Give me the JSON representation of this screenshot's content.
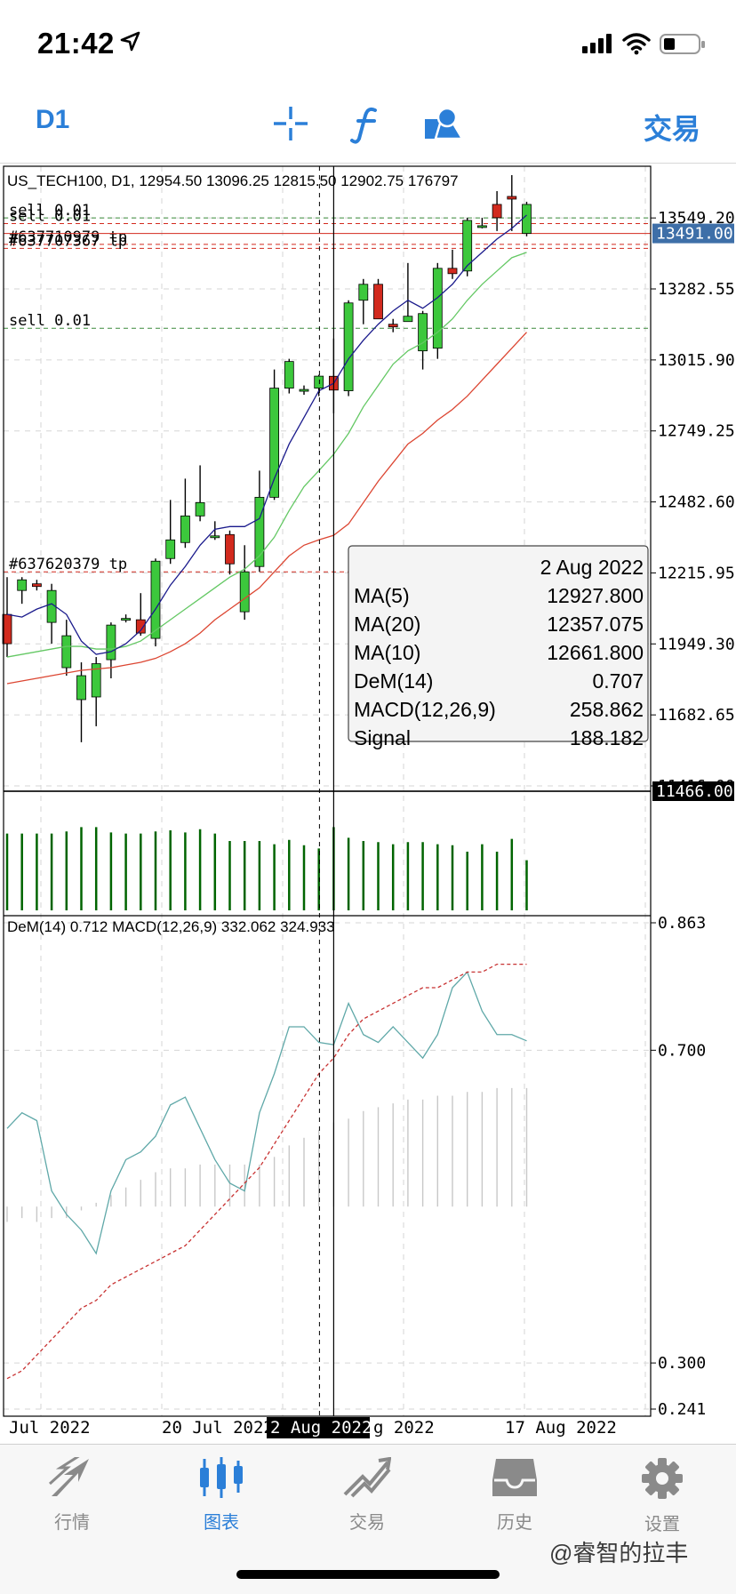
{
  "status": {
    "time": "21:42"
  },
  "toolbar": {
    "timeframe": "D1",
    "trade_label": "交易"
  },
  "chart": {
    "header": "US_TECH100, D1, 12954.50 13096.25 12815.50 12902.75 176797",
    "order_labels": [
      "sell 0.01",
      "sell 0.01",
      "#637710979 tp",
      "#637707367 tp",
      "sell 0.01",
      "#637620379 tp"
    ],
    "price_axis": [
      "13549.20",
      "13282.55",
      "13015.90",
      "12749.25",
      "12482.60",
      "12215.95",
      "11949.30",
      "11682.65",
      "11416.00"
    ],
    "current_price": "13491.00",
    "crosshair_price": "11466.00",
    "indicator_header": "DeM(14) 0.712 MACD(12,26,9) 332.062 324.933",
    "indicator_axis": [
      "0.863",
      "0.700",
      "0.300",
      "0.241"
    ],
    "date_axis": [
      "Jul 2022",
      "20 Jul 2022",
      "g 2022",
      "17 Aug 2022"
    ],
    "crosshair_date": "2 Aug 2022",
    "colors": {
      "bull": "#3cc83c",
      "bear": "#d22a1e",
      "ma5": "#1a1a8c",
      "ma10": "#64c864",
      "ma20": "#dc4632",
      "dem": "#5fa8a8",
      "signal": "#c83232",
      "volume": "#006400",
      "current_price_bg": "#3e6fa8"
    }
  },
  "chart_data": {
    "type": "candlestick",
    "title": "US_TECH100, D1",
    "candles": [
      {
        "o": 12060,
        "h": 12200,
        "l": 11900,
        "c": 11950
      },
      {
        "o": 12150,
        "h": 12200,
        "l": 12100,
        "c": 12190
      },
      {
        "o": 12175,
        "h": 12190,
        "l": 12150,
        "c": 12165
      },
      {
        "o": 12030,
        "h": 12175,
        "l": 11950,
        "c": 12150
      },
      {
        "o": 11860,
        "h": 12040,
        "l": 11830,
        "c": 11980
      },
      {
        "o": 11740,
        "h": 11880,
        "l": 11580,
        "c": 11830
      },
      {
        "o": 11750,
        "h": 11900,
        "l": 11640,
        "c": 11875
      },
      {
        "o": 11890,
        "h": 12030,
        "l": 11820,
        "c": 12020
      },
      {
        "o": 12040,
        "h": 12060,
        "l": 12030,
        "c": 12045
      },
      {
        "o": 12040,
        "h": 12140,
        "l": 11980,
        "c": 11990
      },
      {
        "o": 11970,
        "h": 12270,
        "l": 11940,
        "c": 12260
      },
      {
        "o": 12270,
        "h": 12490,
        "l": 12250,
        "c": 12340
      },
      {
        "o": 12330,
        "h": 12570,
        "l": 12310,
        "c": 12430
      },
      {
        "o": 12430,
        "h": 12620,
        "l": 12410,
        "c": 12480
      },
      {
        "o": 12350,
        "h": 12410,
        "l": 12340,
        "c": 12355
      },
      {
        "o": 12360,
        "h": 12375,
        "l": 12210,
        "c": 12250
      },
      {
        "o": 12070,
        "h": 12320,
        "l": 12040,
        "c": 12220
      },
      {
        "o": 12240,
        "h": 12600,
        "l": 12220,
        "c": 12500
      },
      {
        "o": 12500,
        "h": 12980,
        "l": 12490,
        "c": 12910
      },
      {
        "o": 12910,
        "h": 13020,
        "l": 12890,
        "c": 13010
      },
      {
        "o": 12900,
        "h": 12920,
        "l": 12885,
        "c": 12905
      },
      {
        "o": 12910,
        "h": 12960,
        "l": 12880,
        "c": 12955
      },
      {
        "o": 12954.5,
        "h": 13096.25,
        "l": 12815.5,
        "c": 12902.75
      },
      {
        "o": 12900,
        "h": 13240,
        "l": 12880,
        "c": 13230
      },
      {
        "o": 13240,
        "h": 13320,
        "l": 13150,
        "c": 13300
      },
      {
        "o": 13300,
        "h": 13320,
        "l": 13170,
        "c": 13170
      },
      {
        "o": 13150,
        "h": 13170,
        "l": 13120,
        "c": 13140
      },
      {
        "o": 13160,
        "h": 13380,
        "l": 13160,
        "c": 13180
      },
      {
        "o": 13050,
        "h": 13200,
        "l": 12980,
        "c": 13190
      },
      {
        "o": 13060,
        "h": 13380,
        "l": 13020,
        "c": 13360
      },
      {
        "o": 13360,
        "h": 13430,
        "l": 13320,
        "c": 13340
      },
      {
        "o": 13350,
        "h": 13550,
        "l": 13330,
        "c": 13540
      },
      {
        "o": 13520,
        "h": 13550,
        "l": 13510,
        "c": 13520
      },
      {
        "o": 13600,
        "h": 13650,
        "l": 13500,
        "c": 13550
      },
      {
        "o": 13630,
        "h": 13710,
        "l": 13500,
        "c": 13620
      },
      {
        "o": 13491,
        "h": 13610,
        "l": 13480,
        "c": 13600
      }
    ],
    "ma5": [
      12060,
      12050,
      12080,
      12100,
      12060,
      11960,
      11910,
      11920,
      11950,
      12000,
      12080,
      12170,
      12240,
      12320,
      12380,
      12390,
      12390,
      12420,
      12570,
      12700,
      12800,
      12900,
      12927.8,
      13020,
      13090,
      13150,
      13200,
      13240,
      13210,
      13250,
      13300,
      13370,
      13420,
      13470,
      13510,
      13560
    ],
    "ma10": [
      11900,
      11910,
      11920,
      11930,
      11940,
      11940,
      11930,
      11930,
      11940,
      11960,
      12000,
      12040,
      12080,
      12120,
      12160,
      12200,
      12230,
      12280,
      12350,
      12450,
      12540,
      12600,
      12661.8,
      12740,
      12840,
      12920,
      13000,
      13050,
      13080,
      13120,
      13170,
      13240,
      13300,
      13350,
      13400,
      13420
    ],
    "ma20": [
      11800,
      11810,
      11820,
      11830,
      11840,
      11850,
      11855,
      11860,
      11870,
      11880,
      11895,
      11920,
      11950,
      11990,
      12040,
      12080,
      12120,
      12160,
      12220,
      12280,
      12320,
      12340,
      12357.075,
      12400,
      12480,
      12560,
      12630,
      12700,
      12740,
      12790,
      12830,
      12880,
      12940,
      13000,
      13060,
      13120
    ],
    "volume": [
      0.72,
      0.72,
      0.72,
      0.72,
      0.74,
      0.78,
      0.78,
      0.73,
      0.72,
      0.72,
      0.74,
      0.75,
      0.73,
      0.76,
      0.72,
      0.65,
      0.65,
      0.65,
      0.62,
      0.66,
      0.61,
      0.58,
      0.78,
      0.68,
      0.65,
      0.64,
      0.62,
      0.64,
      0.64,
      0.62,
      0.61,
      0.55,
      0.62,
      0.55,
      0.67,
      0.47
    ],
    "dem": [
      0.6,
      0.62,
      0.61,
      0.52,
      0.49,
      0.47,
      0.44,
      0.52,
      0.56,
      0.57,
      0.59,
      0.63,
      0.64,
      0.6,
      0.56,
      0.53,
      0.52,
      0.62,
      0.67,
      0.73,
      0.73,
      0.71,
      0.707,
      0.76,
      0.72,
      0.71,
      0.73,
      0.71,
      0.69,
      0.72,
      0.78,
      0.8,
      0.75,
      0.72,
      0.72,
      0.712
    ],
    "signal": [
      0.28,
      0.29,
      0.31,
      0.33,
      0.35,
      0.37,
      0.38,
      0.4,
      0.41,
      0.42,
      0.43,
      0.44,
      0.45,
      0.47,
      0.49,
      0.51,
      0.53,
      0.55,
      0.58,
      0.61,
      0.64,
      0.67,
      0.69,
      0.72,
      0.74,
      0.75,
      0.76,
      0.77,
      0.78,
      0.78,
      0.79,
      0.8,
      0.8,
      0.81,
      0.81,
      0.81
    ],
    "macd": [
      -0.04,
      -0.03,
      -0.04,
      -0.03,
      -0.03,
      -0.01,
      0.01,
      0.03,
      0.05,
      0.07,
      0.09,
      0.1,
      0.1,
      0.11,
      0.11,
      0.11,
      0.11,
      0.11,
      0.13,
      0.16,
      0.18,
      0.2,
      0.22,
      0.23,
      0.25,
      0.26,
      0.27,
      0.28,
      0.28,
      0.29,
      0.29,
      0.3,
      0.3,
      0.31,
      0.31,
      0.31
    ],
    "price_range": [
      11416.0,
      13710.0
    ],
    "dem_range": [
      0.241,
      0.863
    ],
    "crosshair_index": 22,
    "current_price": 13491.0,
    "crosshair_price": 11466.0,
    "order_prices": [
      13549.2,
      13528.0,
      13450.0,
      13435.0,
      13135.0,
      12220.0
    ],
    "ticks_price": [
      13549.2,
      13282.55,
      13015.9,
      12749.25,
      12482.6,
      12215.95,
      11949.3,
      11682.65,
      11416.0
    ],
    "ticks_dem": [
      0.863,
      0.7,
      0.3,
      0.241
    ]
  },
  "tooltip": {
    "date": "2 Aug 2022",
    "rows": [
      {
        "label": "MA(5)",
        "value": "12927.800"
      },
      {
        "label": "MA(20)",
        "value": "12357.075"
      },
      {
        "label": "MA(10)",
        "value": "12661.800"
      },
      {
        "label": "DeM(14)",
        "value": "0.707"
      },
      {
        "label": "MACD(12,26,9)",
        "value": "258.862"
      },
      {
        "label": "Signal",
        "value": "188.182"
      }
    ]
  },
  "tabs": [
    {
      "label": "行情",
      "icon": "quotes-icon",
      "active": false
    },
    {
      "label": "图表",
      "icon": "chart-icon",
      "active": true
    },
    {
      "label": "交易",
      "icon": "trade-icon",
      "active": false
    },
    {
      "label": "历史",
      "icon": "history-icon",
      "active": false
    },
    {
      "label": "设置",
      "icon": "settings-icon",
      "active": false
    }
  ],
  "watermark": "@睿智的拉丰"
}
